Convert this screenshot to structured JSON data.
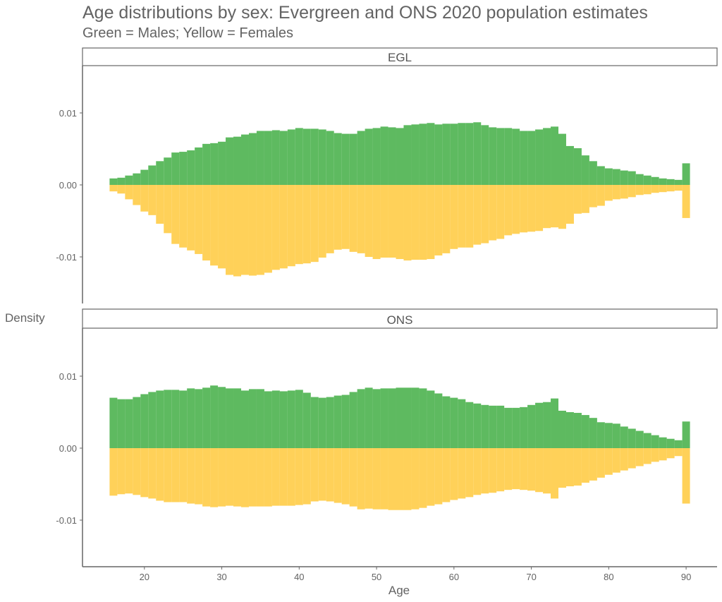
{
  "chart_data": {
    "type": "bar",
    "title": "Age distributions by sex: Evergreen and ONS 2020 population estimates",
    "subtitle": "Green = Males; Yellow = Females",
    "xlabel": "Age",
    "ylabel": "Density",
    "xlim": [
      12,
      94
    ],
    "ylim": [
      -0.016,
      0.0165
    ],
    "x_ticks": [
      20,
      30,
      40,
      50,
      60,
      70,
      80,
      90
    ],
    "x_tick_labels": [
      "20",
      "30",
      "40",
      "50",
      "60",
      "70",
      "80",
      "90"
    ],
    "y_ticks": [
      -0.01,
      0.0,
      0.01
    ],
    "y_tick_labels": [
      "-0.01",
      "0.00",
      "0.01"
    ],
    "grid": false,
    "legend": "none",
    "colors": {
      "males": "#4CB34F",
      "females": "#FFCC47"
    },
    "ages": [
      16,
      17,
      18,
      19,
      20,
      21,
      22,
      23,
      24,
      25,
      26,
      27,
      28,
      29,
      30,
      31,
      32,
      33,
      34,
      35,
      36,
      37,
      38,
      39,
      40,
      41,
      42,
      43,
      44,
      45,
      46,
      47,
      48,
      49,
      50,
      51,
      52,
      53,
      54,
      55,
      56,
      57,
      58,
      59,
      60,
      61,
      62,
      63,
      64,
      65,
      66,
      67,
      68,
      69,
      70,
      71,
      72,
      73,
      74,
      75,
      76,
      77,
      78,
      79,
      80,
      81,
      82,
      83,
      84,
      85,
      86,
      87,
      88,
      89,
      90
    ],
    "panels": [
      {
        "name": "EGL",
        "series": [
          {
            "name": "Males",
            "values": [
              0.0009,
              0.001,
              0.0013,
              0.0016,
              0.0021,
              0.0027,
              0.0033,
              0.0038,
              0.0045,
              0.0046,
              0.0048,
              0.0052,
              0.0057,
              0.0058,
              0.006,
              0.0066,
              0.0067,
              0.007,
              0.0072,
              0.0075,
              0.0075,
              0.0076,
              0.0075,
              0.0077,
              0.0079,
              0.0078,
              0.0078,
              0.0077,
              0.0075,
              0.0072,
              0.0071,
              0.0071,
              0.0075,
              0.0078,
              0.0079,
              0.0081,
              0.008,
              0.0079,
              0.0083,
              0.0084,
              0.0085,
              0.0086,
              0.0084,
              0.0085,
              0.0085,
              0.0086,
              0.0086,
              0.0087,
              0.0083,
              0.008,
              0.0079,
              0.0079,
              0.0078,
              0.0075,
              0.0075,
              0.0077,
              0.0079,
              0.0081,
              0.0071,
              0.0054,
              0.0051,
              0.0041,
              0.0033,
              0.0026,
              0.0023,
              0.0022,
              0.002,
              0.0019,
              0.0015,
              0.0013,
              0.0011,
              0.0009,
              0.0008,
              0.0007,
              0.003
            ]
          },
          {
            "name": "Females",
            "values": [
              -0.0009,
              -0.0012,
              -0.002,
              -0.0028,
              -0.0037,
              -0.0042,
              -0.0054,
              -0.0067,
              -0.0082,
              -0.0087,
              -0.0091,
              -0.0096,
              -0.0105,
              -0.0112,
              -0.0116,
              -0.0125,
              -0.0127,
              -0.0125,
              -0.0126,
              -0.0125,
              -0.0122,
              -0.0118,
              -0.0116,
              -0.0113,
              -0.011,
              -0.0109,
              -0.0107,
              -0.0101,
              -0.0095,
              -0.009,
              -0.0089,
              -0.0093,
              -0.0095,
              -0.01,
              -0.0103,
              -0.0101,
              -0.0101,
              -0.0103,
              -0.0105,
              -0.0104,
              -0.0104,
              -0.0103,
              -0.0098,
              -0.0095,
              -0.0089,
              -0.0087,
              -0.0087,
              -0.0083,
              -0.0081,
              -0.0077,
              -0.0075,
              -0.007,
              -0.0068,
              -0.0066,
              -0.0065,
              -0.0064,
              -0.006,
              -0.0059,
              -0.0061,
              -0.0054,
              -0.004,
              -0.0039,
              -0.0031,
              -0.0029,
              -0.0022,
              -0.002,
              -0.0019,
              -0.0017,
              -0.0014,
              -0.0013,
              -0.0011,
              -0.001,
              -0.0009,
              -0.0008,
              -0.0046
            ]
          }
        ]
      },
      {
        "name": "ONS",
        "series": [
          {
            "name": "Males",
            "values": [
              0.007,
              0.0068,
              0.0068,
              0.0071,
              0.0075,
              0.0078,
              0.008,
              0.0081,
              0.0081,
              0.008,
              0.0083,
              0.0082,
              0.0084,
              0.0087,
              0.0085,
              0.0083,
              0.0083,
              0.008,
              0.0082,
              0.0082,
              0.0079,
              0.008,
              0.0079,
              0.008,
              0.0081,
              0.0077,
              0.0071,
              0.007,
              0.0071,
              0.0073,
              0.0074,
              0.0078,
              0.0082,
              0.0084,
              0.0082,
              0.0083,
              0.0083,
              0.0084,
              0.0084,
              0.0084,
              0.0083,
              0.008,
              0.0076,
              0.0072,
              0.007,
              0.0068,
              0.0064,
              0.0062,
              0.006,
              0.0059,
              0.0059,
              0.0056,
              0.0056,
              0.0057,
              0.006,
              0.0063,
              0.0064,
              0.0069,
              0.0052,
              0.005,
              0.0049,
              0.0046,
              0.0042,
              0.0036,
              0.0035,
              0.0034,
              0.003,
              0.0027,
              0.0024,
              0.0021,
              0.0018,
              0.0015,
              0.0013,
              0.0011,
              0.0037
            ]
          },
          {
            "name": "Females",
            "values": [
              -0.0066,
              -0.0064,
              -0.0063,
              -0.0065,
              -0.0068,
              -0.007,
              -0.0073,
              -0.0075,
              -0.0075,
              -0.0075,
              -0.0077,
              -0.0078,
              -0.0081,
              -0.0082,
              -0.0081,
              -0.008,
              -0.0081,
              -0.0082,
              -0.0081,
              -0.0081,
              -0.0081,
              -0.008,
              -0.008,
              -0.008,
              -0.0079,
              -0.0078,
              -0.0074,
              -0.0073,
              -0.0074,
              -0.0076,
              -0.0078,
              -0.0081,
              -0.0085,
              -0.0084,
              -0.0085,
              -0.0085,
              -0.0086,
              -0.0086,
              -0.0086,
              -0.0085,
              -0.0083,
              -0.008,
              -0.0078,
              -0.0075,
              -0.0072,
              -0.007,
              -0.0068,
              -0.0065,
              -0.0063,
              -0.0062,
              -0.006,
              -0.0058,
              -0.0057,
              -0.0058,
              -0.0059,
              -0.0061,
              -0.0063,
              -0.007,
              -0.0055,
              -0.0053,
              -0.0052,
              -0.0048,
              -0.0045,
              -0.0041,
              -0.0037,
              -0.0034,
              -0.0031,
              -0.0028,
              -0.0025,
              -0.0022,
              -0.0019,
              -0.0017,
              -0.0014,
              -0.0011,
              -0.0077
            ]
          }
        ]
      }
    ]
  }
}
